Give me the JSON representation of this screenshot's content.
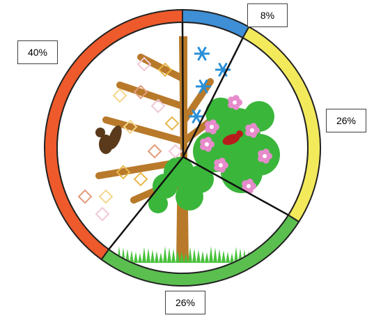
{
  "chart_data": {
    "type": "pie",
    "title": "",
    "slices": [
      {
        "label": "8%",
        "value": 8,
        "color": "#3e8fd6"
      },
      {
        "label": "26%",
        "value": 26,
        "color": "#f2ea5b"
      },
      {
        "label": "26%",
        "value": 26,
        "color": "#5bbf50"
      },
      {
        "label": "40%",
        "value": 40,
        "color": "#ee5a2b"
      }
    ],
    "inner_scene": {
      "divider_color": "#111111",
      "segments": [
        "winter-snowflakes",
        "spring-blossom",
        "summer-grass",
        "autumn-leaves"
      ],
      "colors": {
        "trunk": "#b87a2a",
        "leaf_green": "#3ab63a",
        "blossom": "#e68bcb",
        "snowflake": "#2a8fd6",
        "bird": "#b71c1c",
        "squirrel": "#5a3a1a",
        "grass": "#49c23c"
      }
    }
  }
}
